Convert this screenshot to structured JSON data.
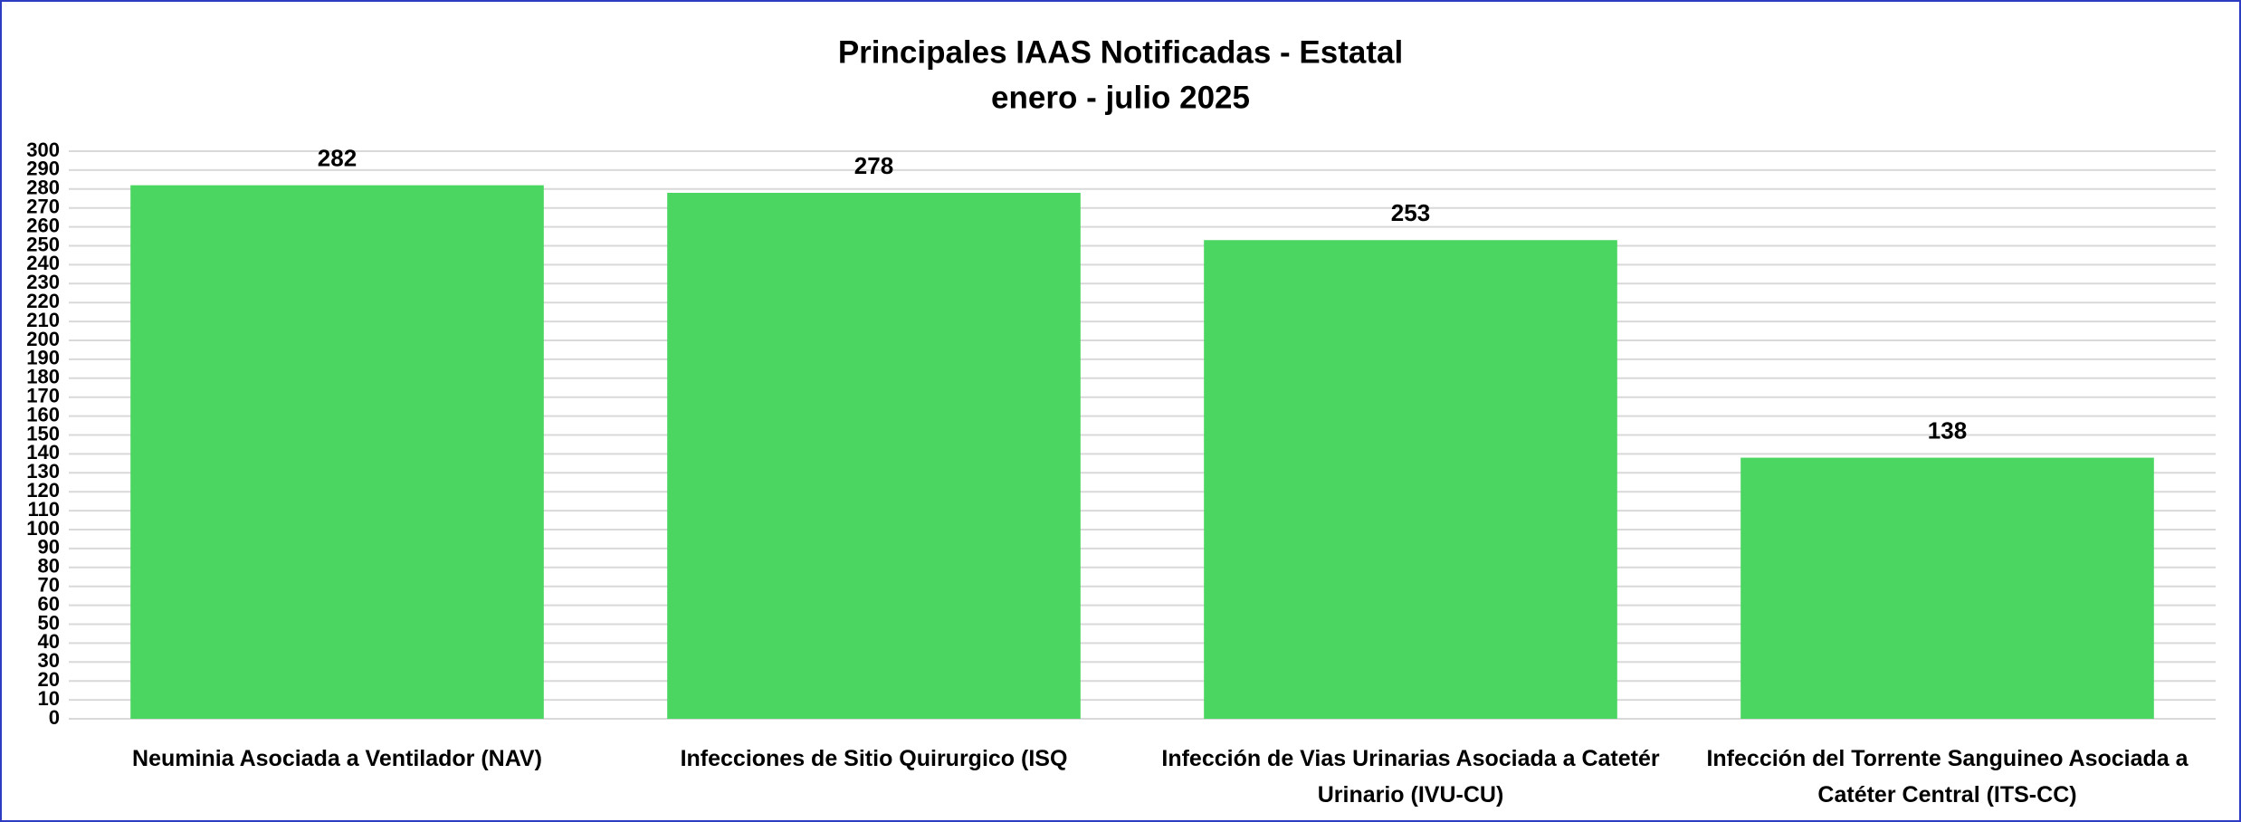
{
  "chart_data": {
    "type": "bar",
    "title": "Principales IAAS Notificadas - Estatal",
    "subtitle": "enero - julio 2025",
    "categories": [
      "Neuminia Asociada a Ventilador (NAV)",
      "Infecciones de Sitio Quirurgico (ISQ",
      "Infección de Vias Urinarias Asociada a Catetér Urinario (IVU-CU)",
      "Infección del Torrente Sanguineo Asociada a Catéter Central (ITS-CC)"
    ],
    "values": [
      282,
      278,
      253,
      138
    ],
    "color": "#4ad660",
    "ylim": [
      0,
      300
    ],
    "yticks": [
      0,
      10,
      20,
      30,
      40,
      50,
      60,
      70,
      80,
      90,
      100,
      110,
      120,
      130,
      140,
      150,
      160,
      170,
      180,
      190,
      200,
      210,
      220,
      230,
      240,
      250,
      260,
      270,
      280,
      290,
      300
    ],
    "grid": true
  }
}
